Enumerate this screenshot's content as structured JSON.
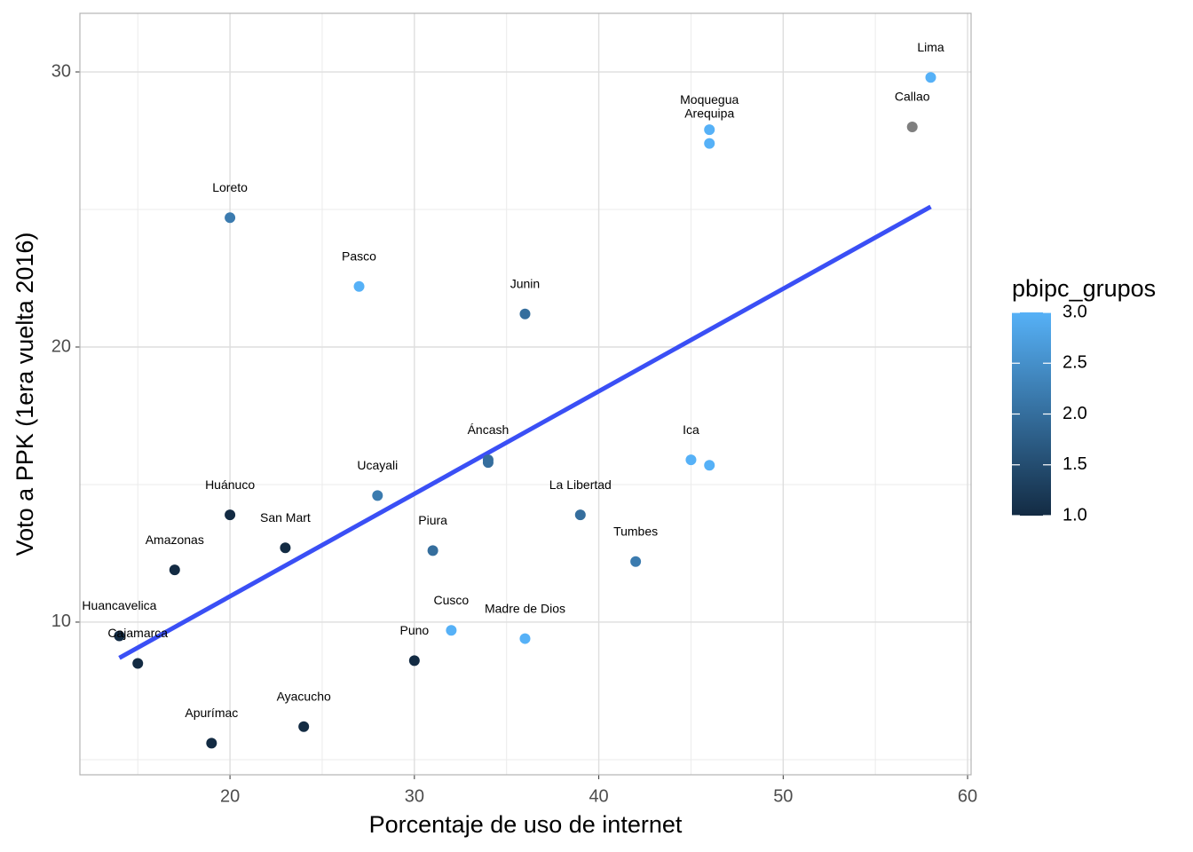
{
  "chart_data": {
    "type": "scatter",
    "x_label": "Porcentaje de uso de internet",
    "y_label": "Voto a PPK (1era vuelta 2016)",
    "labels": [
      "Lima",
      "Callao",
      "Moquegua",
      "Arequipa",
      "Loreto",
      "Pasco",
      "Junin",
      "Áncash",
      null,
      "Ica",
      null,
      "Ucayali",
      "Huánuco",
      "La Libertad",
      "San Mart",
      "Piura",
      "Tumbes",
      "Amazonas",
      "Huancavelica",
      "Cajamarca",
      "Cusco",
      "Madre de Dios",
      "Puno",
      "Apurímac",
      "Ayacucho"
    ],
    "x": [
      58,
      57,
      46,
      46,
      20,
      27,
      36,
      34,
      34,
      45,
      46,
      28,
      20,
      39,
      23,
      31,
      42,
      17,
      14,
      15,
      32,
      36,
      30,
      19,
      24
    ],
    "values": [
      29.8,
      28.0,
      27.9,
      27.4,
      24.7,
      22.2,
      21.2,
      15.9,
      15.8,
      15.9,
      15.7,
      14.6,
      13.9,
      13.9,
      12.7,
      12.6,
      12.2,
      11.9,
      9.5,
      8.5,
      9.7,
      9.4,
      8.6,
      5.6,
      6.2
    ],
    "group": [
      3,
      null,
      3,
      3,
      2.2,
      3,
      2,
      2,
      2,
      3,
      3,
      2.2,
      1,
      2,
      1,
      2,
      2.2,
      1,
      1,
      1,
      3,
      3,
      1,
      1,
      1
    ],
    "na_color": "#7f7f7f",
    "xlim": [
      11.86,
      60.19
    ],
    "ylim": [
      4.45,
      32.13
    ],
    "xticks": [
      20,
      30,
      40,
      50,
      60
    ],
    "yticks": [
      10,
      20,
      30
    ],
    "xminor": [
      15,
      25,
      35,
      45,
      55
    ],
    "yminor": [
      5,
      15,
      25
    ],
    "grid": true,
    "fit_line": {
      "x": [
        14,
        58
      ],
      "y": [
        8.7,
        25.1
      ],
      "color": "#3a4ff5"
    },
    "legend": {
      "title": "pbipc_grupos",
      "low_color": "#132B43",
      "high_color": "#56B1F7",
      "lim": [
        1,
        3
      ],
      "ticks": [
        {
          "value": 1,
          "label": "1.0"
        },
        {
          "value": 1.5,
          "label": "1.5"
        },
        {
          "value": 2,
          "label": "2.0"
        },
        {
          "value": 2.5,
          "label": "2.5"
        },
        {
          "value": 3,
          "label": "3.0"
        }
      ]
    }
  }
}
